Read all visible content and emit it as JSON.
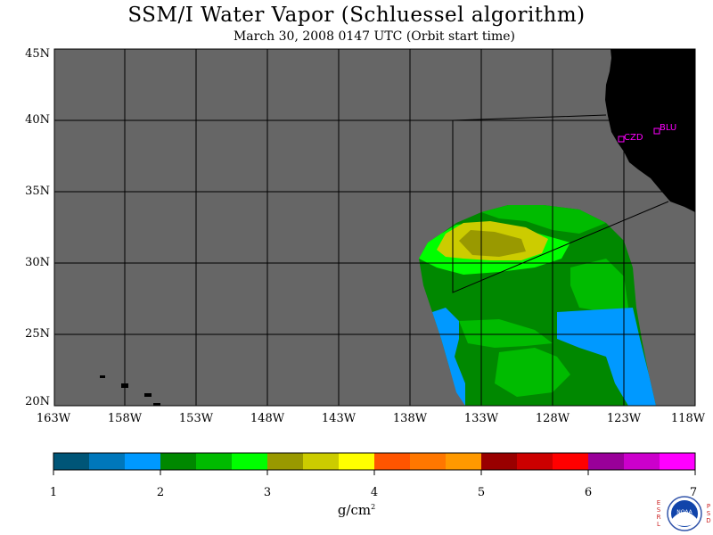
{
  "title": "SSM/I Water Vapor (Schluessel algorithm)",
  "subtitle": "March 30, 2008  0147 UTC  (Orbit start time)",
  "map": {
    "lat_labels": [
      "45N",
      "40N",
      "35N",
      "30N",
      "25N",
      "20N"
    ],
    "lon_labels": [
      "163W",
      "158W",
      "153W",
      "148W",
      "143W",
      "138W",
      "133W",
      "128W",
      "123W",
      "118W"
    ],
    "stations": [
      {
        "label": "CZD",
        "color": "#ff00ff"
      },
      {
        "label": "BLU",
        "color": "#ff00ff"
      }
    ],
    "no_data_color": "#666666",
    "land_color": "#000000"
  },
  "colorbar": {
    "ticks": [
      "1",
      "2",
      "3",
      "4",
      "5",
      "6",
      "7"
    ],
    "unit": "g/cm",
    "unit_sup": "2",
    "colors": [
      "#005577",
      "#0077bb",
      "#0099ff",
      "#008800",
      "#00bb00",
      "#00ff00",
      "#999900",
      "#cccc00",
      "#ffff00",
      "#ff5500",
      "#ff7700",
      "#ff9900",
      "#990000",
      "#cc0000",
      "#ff0000",
      "#990099",
      "#cc00cc",
      "#ff00ff"
    ]
  },
  "logo": {
    "left_letters": [
      "E",
      "S",
      "R",
      "L"
    ],
    "right_letters": [
      "P",
      "S",
      "D"
    ],
    "center_text": "NOAA"
  }
}
